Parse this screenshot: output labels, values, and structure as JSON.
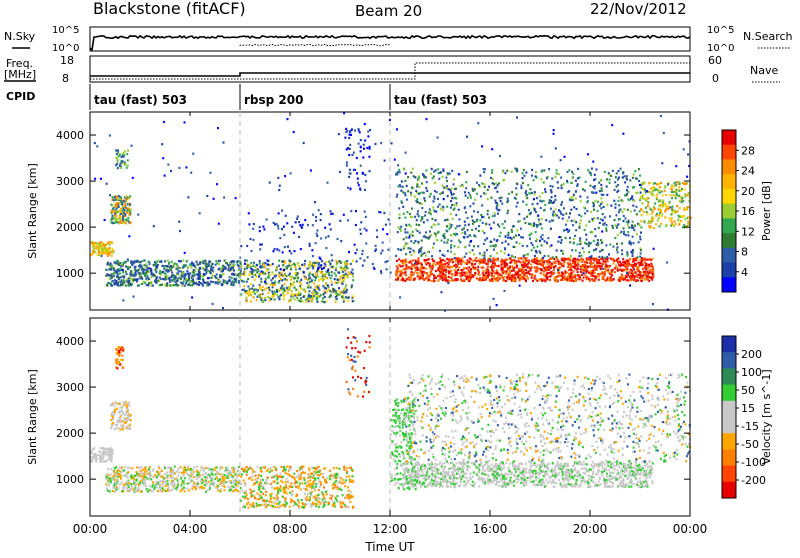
{
  "header": {
    "station": "Blackstone (fitACF)",
    "beam": "Beam 20",
    "date": "22/Nov/2012"
  },
  "strip_labels": {
    "nsky": "N.Sky",
    "nsearch": "N.Search",
    "freq_line1": "Freq.",
    "freq_line2": "[MHz]",
    "nave": "Nave",
    "cpid": "CPID"
  },
  "strip_ticks": {
    "noise_left_top": "10^5",
    "noise_left_bottom": "10^0",
    "noise_right_top": "10^5",
    "noise_right_bottom": "10^0",
    "freq_left_top": "18",
    "freq_left_bottom": "8",
    "nave_right_top": "60",
    "nave_right_bottom": "0"
  },
  "cpid_segments": [
    {
      "label": "tau (fast) 503",
      "start_hour": 0,
      "end_hour": 6
    },
    {
      "label": "rbsp 200",
      "start_hour": 6,
      "end_hour": 12
    },
    {
      "label": "tau (fast) 503",
      "start_hour": 12,
      "end_hour": 24
    }
  ],
  "chart_data": [
    {
      "type": "heatmap",
      "name": "power",
      "ylabel": "Slant Range [km]",
      "xlabel": "Time UT",
      "xlim": [
        0,
        24
      ],
      "ylim": [
        200,
        4500
      ],
      "yticks": [
        1000,
        2000,
        3000,
        4000
      ],
      "colorbar": {
        "label": "Power [dB]",
        "ticks": [
          "28",
          "24",
          "20",
          "16",
          "12",
          "8",
          "4"
        ],
        "colors": [
          "#e60000",
          "#ff4500",
          "#ff8c00",
          "#ffb300",
          "#ffd700",
          "#9acd32",
          "#32a852",
          "#2e7d32",
          "#2e5da8",
          "#1c3fa8",
          "#0000ff"
        ]
      }
    },
    {
      "type": "heatmap",
      "name": "velocity",
      "ylabel": "Slant Range [km]",
      "xlabel": "Time UT",
      "xlim": [
        0,
        24
      ],
      "ylim": [
        200,
        4500
      ],
      "yticks": [
        1000,
        2000,
        3000,
        4000
      ],
      "colorbar": {
        "label": "Velocity [m s^-1]",
        "ticks": [
          "200",
          "100",
          "50",
          "15",
          "-15",
          "-50",
          "-100",
          "-200"
        ],
        "colors": [
          "#1c2fa8",
          "#2e5da8",
          "#2e8b57",
          "#32cd32",
          "#c8c8c8",
          "#c8c8c8",
          "#ffa500",
          "#ff7f00",
          "#ff4500",
          "#e60000"
        ]
      }
    }
  ],
  "xaxis": {
    "label": "Time UT",
    "ticks": [
      "00:00",
      "04:00",
      "08:00",
      "12:00",
      "16:00",
      "20:00",
      "00:00"
    ],
    "tick_hours": [
      0,
      4,
      8,
      12,
      16,
      20,
      24
    ]
  }
}
